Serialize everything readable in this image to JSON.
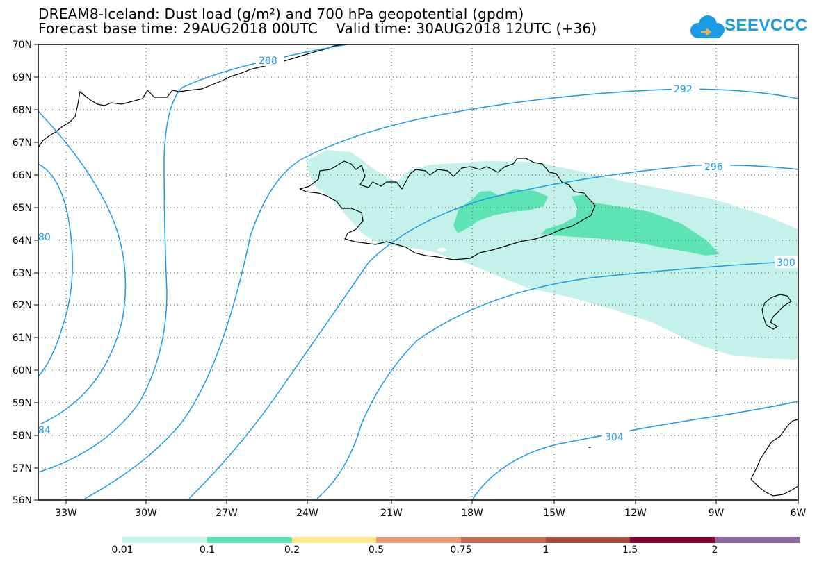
{
  "title": {
    "line1": "DREAM8-Iceland: Dust load (g/m²) and 700 hPa geopotential (gpdm)",
    "line2": "Forecast base time: 29AUG2018 00UTC    Valid time: 30AUG2018 12UTC (+36)"
  },
  "logo": {
    "text": "SEEVCCC",
    "icon": "cloud-icon"
  },
  "map": {
    "lat_labels": [
      "70N",
      "69N",
      "68N",
      "67N",
      "66N",
      "65N",
      "64N",
      "63N",
      "62N",
      "61N",
      "60N",
      "59N",
      "58N",
      "57N",
      "56N"
    ],
    "lon_labels": [
      "33W",
      "30W",
      "27W",
      "24W",
      "21W",
      "18W",
      "15W",
      "12W",
      "9W",
      "6W"
    ],
    "lat_range": [
      56,
      70
    ],
    "lon_range": [
      -34.2,
      -6
    ],
    "grid": "dotted",
    "contour_color": "#1a9be6",
    "contour_labels": [
      "288",
      "292",
      "296",
      "300",
      "304",
      "80",
      "84"
    ]
  },
  "colorbar": {
    "labels": [
      "0.01",
      "0.1",
      "0.2",
      "0.5",
      "0.75",
      "1",
      "1.5",
      "2"
    ],
    "colors": [
      "#c4f2ea",
      "#5ee3b5",
      "#fbe88a",
      "#e99a72",
      "#c46b55",
      "#a84a3f",
      "#83062e",
      "#3b2a14",
      "#8b64a0"
    ]
  }
}
